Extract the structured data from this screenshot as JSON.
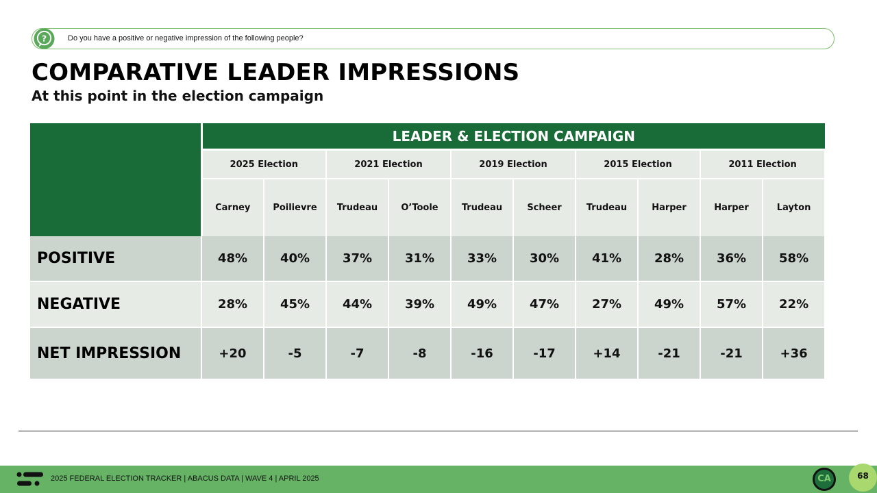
{
  "question": {
    "icon": "question-mark-icon",
    "text": "Do you have a positive or negative impression of the following people?"
  },
  "title": "COMPARATIVE LEADER IMPRESSIONS",
  "subtitle": "At this point in the election campaign",
  "table": {
    "group_header": "LEADER & ELECTION CAMPAIGN",
    "elections": [
      "2025 Election",
      "2021 Election",
      "2019 Election",
      "2015 Election",
      "2011 Election"
    ],
    "leaders": [
      "Carney",
      "Poilievre",
      "Trudeau",
      "O’Toole",
      "Trudeau",
      "Scheer",
      "Trudeau",
      "Harper",
      "Harper",
      "Layton"
    ],
    "rows": [
      {
        "label": "POSITIVE",
        "values": [
          "48%",
          "40%",
          "37%",
          "31%",
          "33%",
          "30%",
          "41%",
          "28%",
          "36%",
          "58%"
        ]
      },
      {
        "label": "NEGATIVE",
        "values": [
          "28%",
          "45%",
          "44%",
          "39%",
          "49%",
          "47%",
          "27%",
          "49%",
          "57%",
          "22%"
        ]
      },
      {
        "label": "NET IMPRESSION",
        "values": [
          "+20",
          "-5",
          "-7",
          "-8",
          "-16",
          "-17",
          "+14",
          "-21",
          "-21",
          "+36"
        ]
      }
    ]
  },
  "footer": {
    "text": "2025 FEDERAL ELECTION TRACKER  |  ABACUS DATA  |  WAVE 4  |  APRIL 2025",
    "badge": "CA",
    "page_number": "68"
  },
  "colors": {
    "header_green": "#196b38",
    "footer_green": "#66b366",
    "accent_light_green": "#a9d86e",
    "row_dark": "#cbd5ce",
    "row_light": "#e6ebe5"
  }
}
